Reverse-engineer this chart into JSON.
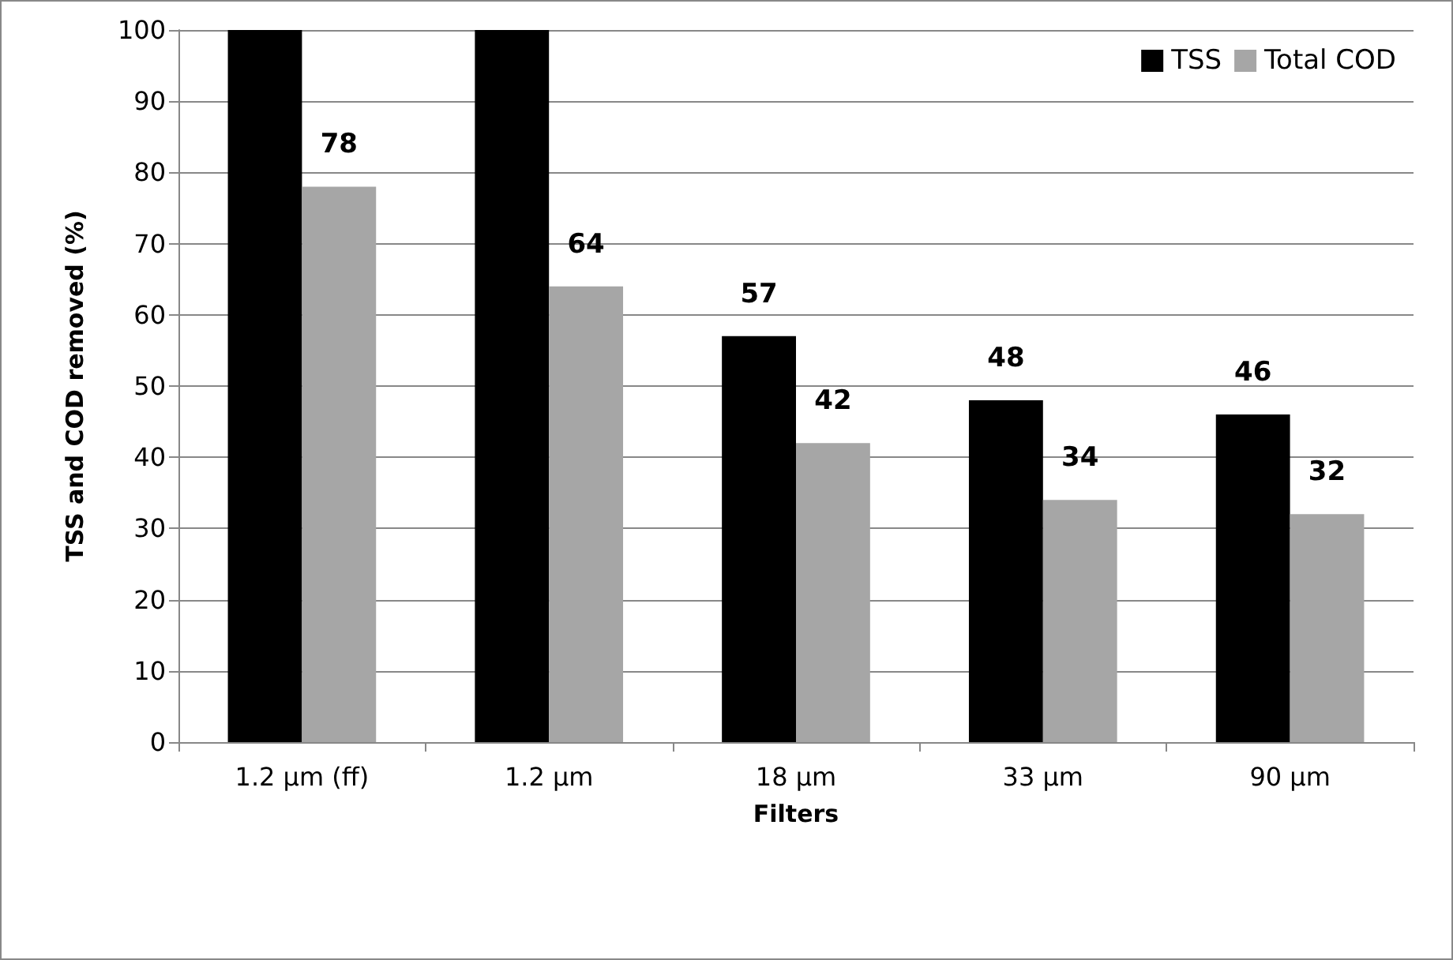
{
  "chart_data": {
    "type": "bar",
    "xlabel": "Filters",
    "ylabel": "TSS and COD removed (%)",
    "categories": [
      "1.2 µm (ff)",
      "1.2 µm",
      "18 µm",
      "33 µm",
      "90 µm"
    ],
    "series": [
      {
        "name": "TSS",
        "color": "#000000",
        "values": [
          100,
          100,
          57,
          48,
          46
        ],
        "value_labels": [
          null,
          null,
          "57",
          "48",
          "46"
        ]
      },
      {
        "name": "Total COD",
        "color": "#a6a6a6",
        "values": [
          78,
          64,
          42,
          34,
          32
        ],
        "value_labels": [
          "78",
          "64",
          "42",
          "34",
          "32"
        ]
      }
    ],
    "ylim": [
      0,
      100
    ],
    "yticks": [
      0,
      10,
      20,
      30,
      40,
      50,
      60,
      70,
      80,
      90,
      100
    ],
    "grid": "y",
    "legend": "top right"
  }
}
